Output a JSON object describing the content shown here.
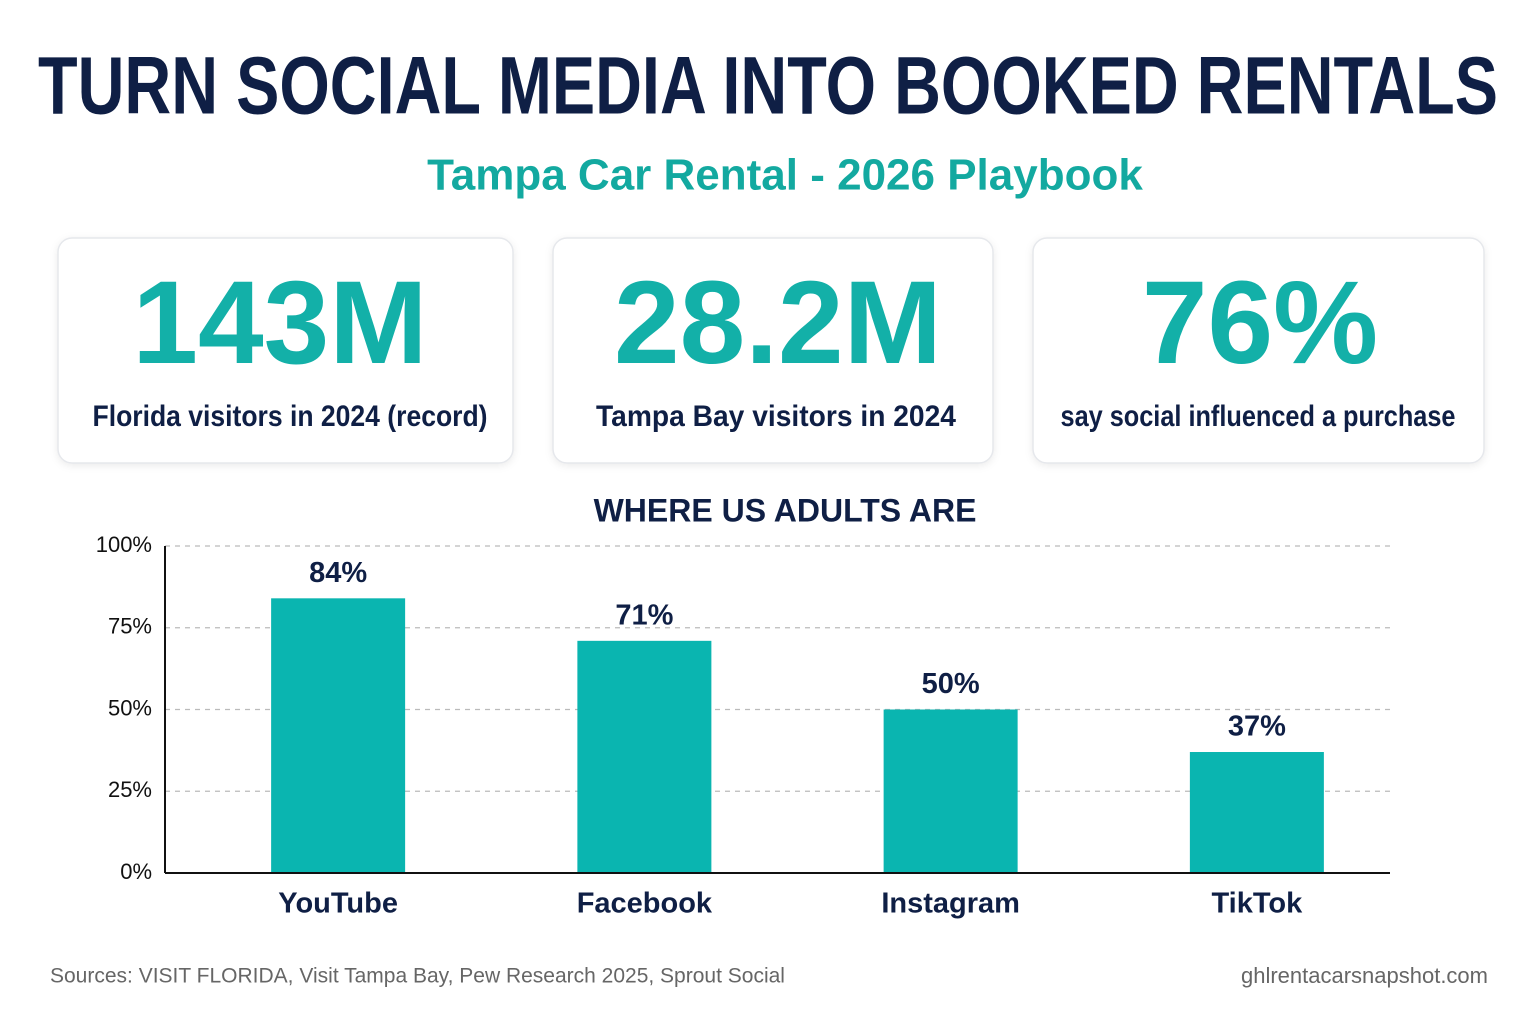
{
  "header": {
    "title": "TURN SOCIAL MEDIA INTO BOOKED RENTALS",
    "subtitle": "Tampa Car Rental - 2026 Playbook"
  },
  "stats": [
    {
      "value": "143M",
      "label": "Florida visitors in 2024 (record)"
    },
    {
      "value": "28.2M",
      "label": "Tampa Bay visitors in 2024"
    },
    {
      "value": "76%",
      "label": "say social influenced a purchase"
    }
  ],
  "chart_data": {
    "type": "bar",
    "title": "WHERE US ADULTS ARE",
    "categories": [
      "YouTube",
      "Facebook",
      "Instagram",
      "TikTok"
    ],
    "values": [
      84,
      71,
      50,
      37
    ],
    "value_labels": [
      "84%",
      "71%",
      "50%",
      "37%"
    ],
    "color": "#0ab5b0",
    "ylim": [
      0,
      100
    ],
    "yticks": [
      {
        "value": 0,
        "label": "0%"
      },
      {
        "value": 25,
        "label": "25%"
      },
      {
        "value": 50,
        "label": "50%"
      },
      {
        "value": 75,
        "label": "75%"
      },
      {
        "value": 100,
        "label": "100%"
      }
    ],
    "grid": true
  },
  "footer": {
    "sources": "Sources: VISIT FLORIDA, Visit Tampa Bay, Pew Research 2025, Sprout Social",
    "site": "ghlrentacarsnapshot.com"
  }
}
